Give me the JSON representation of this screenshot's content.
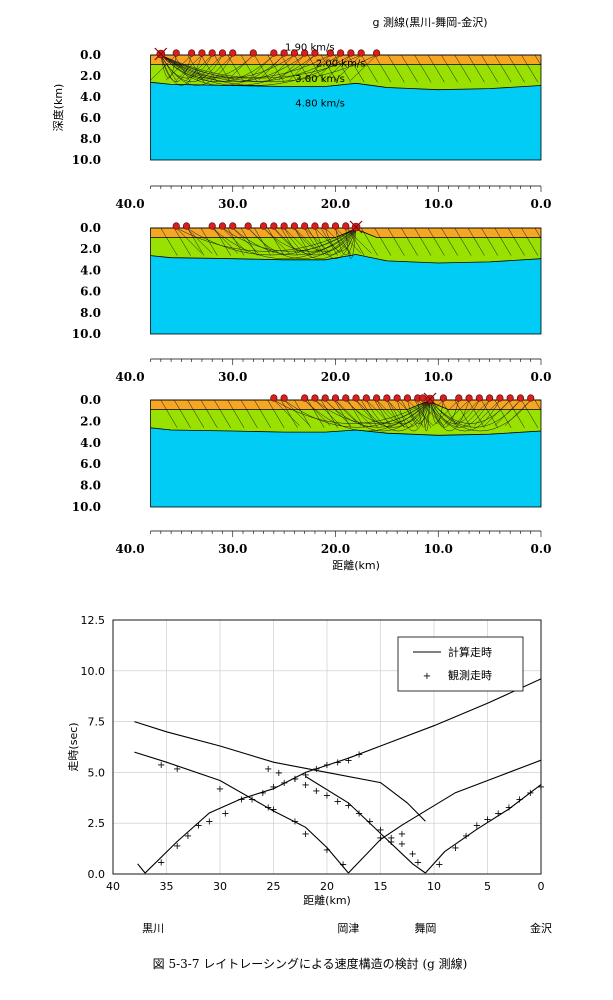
{
  "figure": {
    "title": "g 測線(黒川-舞岡-金沢)",
    "caption": "図 5-3-7 レイトレーシングによる速度構造の検討 (g 測線)"
  },
  "colors": {
    "layer1": "#f5a623",
    "layer2": "#99e100",
    "layer3": "#00ccf5",
    "station": "#d62020",
    "shot": "#d62020"
  },
  "chart_data": [
    {
      "type": "area",
      "panel": "velocity-model-1",
      "ylabel": "深度(km)",
      "xlabel": "",
      "xlim": [
        40,
        0
      ],
      "ylim": [
        0,
        10
      ],
      "x_ticks": [
        "40.0",
        "30.0",
        "20.0",
        "10.0",
        "0.0"
      ],
      "y_ticks": [
        "0.0",
        "2.0",
        "4.0",
        "6.0",
        "8.0",
        "10.0"
      ],
      "velocity_labels": [
        {
          "text": "1.90 km/s",
          "x": 22.5,
          "y": -0.7
        },
        {
          "text": "2.00 km/s",
          "x": 19.5,
          "y": 0.8
        },
        {
          "text": "3.00 km/s",
          "x": 21.5,
          "y": 2.3
        },
        {
          "text": "4.80 km/s",
          "x": 21.5,
          "y": 4.6
        }
      ],
      "boundary_1": [
        [
          38,
          0.9
        ],
        [
          30,
          0.9
        ],
        [
          20,
          0.9
        ],
        [
          10,
          0.9
        ],
        [
          0,
          0.9
        ]
      ],
      "boundary_2": [
        [
          38,
          2.6
        ],
        [
          36,
          2.8
        ],
        [
          30,
          2.9
        ],
        [
          25,
          3.0
        ],
        [
          21,
          3.0
        ],
        [
          18,
          2.7
        ],
        [
          15,
          3.1
        ],
        [
          10,
          3.3
        ],
        [
          5,
          3.2
        ],
        [
          0,
          2.9
        ]
      ],
      "shot_x": 37,
      "stations_x": [
        35.5,
        34,
        33,
        32,
        31,
        30,
        28,
        26,
        25,
        24,
        23,
        22,
        20.5,
        19.5,
        18.5,
        17.5,
        16
      ]
    },
    {
      "type": "area",
      "panel": "velocity-model-2",
      "ylabel": "",
      "xlabel": "",
      "xlim": [
        40,
        0
      ],
      "ylim": [
        0,
        10
      ],
      "x_ticks": [
        "40.0",
        "30.0",
        "20.0",
        "10.0",
        "0.0"
      ],
      "y_ticks": [
        "0.0",
        "2.0",
        "4.0",
        "6.0",
        "8.0",
        "10.0"
      ],
      "boundary_1": [
        [
          38,
          0.9
        ],
        [
          20,
          0.9
        ],
        [
          18,
          0.1
        ],
        [
          16,
          0.9
        ],
        [
          0,
          0.9
        ]
      ],
      "boundary_2": [
        [
          38,
          2.6
        ],
        [
          36,
          2.8
        ],
        [
          30,
          2.9
        ],
        [
          25,
          3.0
        ],
        [
          21,
          3.0
        ],
        [
          18,
          2.5
        ],
        [
          15,
          3.1
        ],
        [
          10,
          3.3
        ],
        [
          5,
          3.2
        ],
        [
          0,
          2.9
        ]
      ],
      "shot_x": 18,
      "stations_x": [
        35.5,
        34.5,
        32,
        31,
        30,
        28.5,
        27,
        26,
        25,
        24,
        23,
        22,
        21,
        20,
        19
      ]
    },
    {
      "type": "area",
      "panel": "velocity-model-3",
      "ylabel": "",
      "xlabel": "距離(km)",
      "xlim": [
        40,
        0
      ],
      "ylim": [
        0,
        10
      ],
      "x_ticks": [
        "40.0",
        "30.0",
        "20.0",
        "10.0",
        "0.0"
      ],
      "y_ticks": [
        "0.0",
        "2.0",
        "4.0",
        "6.0",
        "8.0",
        "10.0"
      ],
      "boundary_1": [
        [
          38,
          0.9
        ],
        [
          13,
          0.9
        ],
        [
          11,
          0.1
        ],
        [
          9,
          0.9
        ],
        [
          0,
          0.9
        ]
      ],
      "boundary_2": [
        [
          38,
          2.6
        ],
        [
          36,
          2.8
        ],
        [
          30,
          2.9
        ],
        [
          25,
          3.0
        ],
        [
          21,
          3.0
        ],
        [
          18,
          2.8
        ],
        [
          15,
          3.1
        ],
        [
          10,
          3.3
        ],
        [
          5,
          3.2
        ],
        [
          0,
          2.9
        ]
      ],
      "shot_x": 10.8,
      "stations_x": [
        26,
        25,
        23,
        22,
        21,
        20,
        19,
        18,
        17,
        16,
        15,
        14,
        13,
        12,
        11.5,
        9.5,
        8,
        7,
        6,
        5,
        4,
        3,
        2,
        1
      ]
    },
    {
      "type": "line",
      "panel": "travel-time",
      "ylabel": "走時(sec)",
      "xlabel": "距離(km)",
      "xlim": [
        40,
        0
      ],
      "ylim": [
        0,
        12.5
      ],
      "x_ticks": [
        "40",
        "35",
        "30",
        "25",
        "20",
        "15",
        "10",
        "5",
        "0"
      ],
      "y_ticks": [
        "0.0",
        "2.5",
        "5.0",
        "7.5",
        "10.0",
        "12.5"
      ],
      "grid": true,
      "legend": {
        "position": "top-right",
        "line_label": "計算走時",
        "marker_label": "観測走時"
      },
      "place_labels": [
        {
          "text": "黒川",
          "x": 37
        },
        {
          "text": "岡津",
          "x": 18
        },
        {
          "text": "舞岡",
          "x": 10.8
        },
        {
          "text": "金沢",
          "x": 0
        }
      ],
      "series": [
        {
          "name": "計算走時",
          "kind": "calc",
          "points": [
            [
              38,
              7.5
            ],
            [
              35,
              7.0
            ],
            [
              30,
              6.3
            ],
            [
              25,
              5.5
            ],
            [
              20,
              5.0
            ],
            [
              15,
              4.5
            ],
            [
              12.5,
              3.5
            ],
            [
              10.8,
              2.6
            ]
          ]
        },
        {
          "name": "計算走時",
          "kind": "calc",
          "points": [
            [
              38,
              6.0
            ],
            [
              35,
              5.5
            ],
            [
              30,
              4.6
            ],
            [
              25,
              3.1
            ],
            [
              22,
              2.3
            ],
            [
              20,
              1.3
            ],
            [
              18,
              0.05
            ]
          ]
        },
        {
          "name": "計算走時",
          "kind": "calc",
          "points": [
            [
              37.7,
              0.5
            ],
            [
              37,
              0.05
            ],
            [
              34,
              1.6
            ],
            [
              31,
              3.0
            ],
            [
              28,
              3.7
            ],
            [
              25,
              4.2
            ],
            [
              22,
              5.0
            ],
            [
              18,
              5.7
            ],
            [
              15,
              6.3
            ],
            [
              10,
              7.3
            ],
            [
              5,
              8.4
            ],
            [
              0,
              9.6
            ]
          ]
        },
        {
          "name": "計算走時",
          "kind": "calc",
          "points": [
            [
              18,
              0.05
            ],
            [
              15,
              1.7
            ],
            [
              13,
              2.4
            ],
            [
              8,
              4.0
            ],
            [
              4,
              4.8
            ],
            [
              0,
              5.6
            ]
          ]
        },
        {
          "name": "計算走時",
          "kind": "calc",
          "points": [
            [
              10.8,
              0.05
            ],
            [
              9,
              1.1
            ],
            [
              6,
              2.2
            ],
            [
              3,
              3.2
            ],
            [
              0,
              4.4
            ]
          ]
        },
        {
          "name": "計算走時",
          "kind": "calc",
          "points": [
            [
              22,
              4.8
            ],
            [
              18,
              3.5
            ],
            [
              15,
              2.0
            ],
            [
              12,
              0.5
            ],
            [
              10.8,
              0.05
            ]
          ]
        },
        {
          "name": "観測走時",
          "kind": "obs",
          "points": [
            [
              35.5,
              5.4
            ],
            [
              34,
              5.2
            ],
            [
              30,
              4.2
            ],
            [
              27,
              3.7
            ],
            [
              25.5,
              3.3
            ],
            [
              25,
              3.2
            ],
            [
              23,
              2.6
            ],
            [
              22,
              2.0
            ],
            [
              20,
              1.2
            ],
            [
              18.5,
              0.5
            ],
            [
              35.5,
              0.6
            ],
            [
              34,
              1.4
            ],
            [
              33,
              1.9
            ],
            [
              32,
              2.4
            ],
            [
              31,
              2.6
            ],
            [
              29.5,
              3.0
            ],
            [
              28,
              3.7
            ],
            [
              26,
              4.0
            ],
            [
              25,
              4.3
            ],
            [
              24,
              4.5
            ],
            [
              23,
              4.7
            ],
            [
              22,
              4.9
            ],
            [
              21,
              5.2
            ],
            [
              20,
              5.4
            ],
            [
              19,
              5.5
            ],
            [
              18,
              5.6
            ],
            [
              17,
              5.9
            ],
            [
              25.5,
              5.2
            ],
            [
              24.5,
              5.0
            ],
            [
              23,
              4.7
            ],
            [
              22,
              4.4
            ],
            [
              21,
              4.1
            ],
            [
              20,
              3.9
            ],
            [
              19,
              3.6
            ],
            [
              18,
              3.4
            ],
            [
              17,
              3.0
            ],
            [
              16,
              2.6
            ],
            [
              15,
              2.2
            ],
            [
              14,
              1.8
            ],
            [
              13,
              1.5
            ],
            [
              12,
              1.0
            ],
            [
              11.5,
              0.6
            ],
            [
              9.5,
              0.5
            ],
            [
              8,
              1.3
            ],
            [
              7,
              1.9
            ],
            [
              6,
              2.4
            ],
            [
              5,
              2.7
            ],
            [
              4,
              3.0
            ],
            [
              3,
              3.3
            ],
            [
              2,
              3.7
            ],
            [
              1,
              4.0
            ],
            [
              0,
              4.3
            ],
            [
              15,
              1.8
            ],
            [
              14,
              1.6
            ],
            [
              13,
              2.0
            ]
          ]
        }
      ]
    }
  ]
}
